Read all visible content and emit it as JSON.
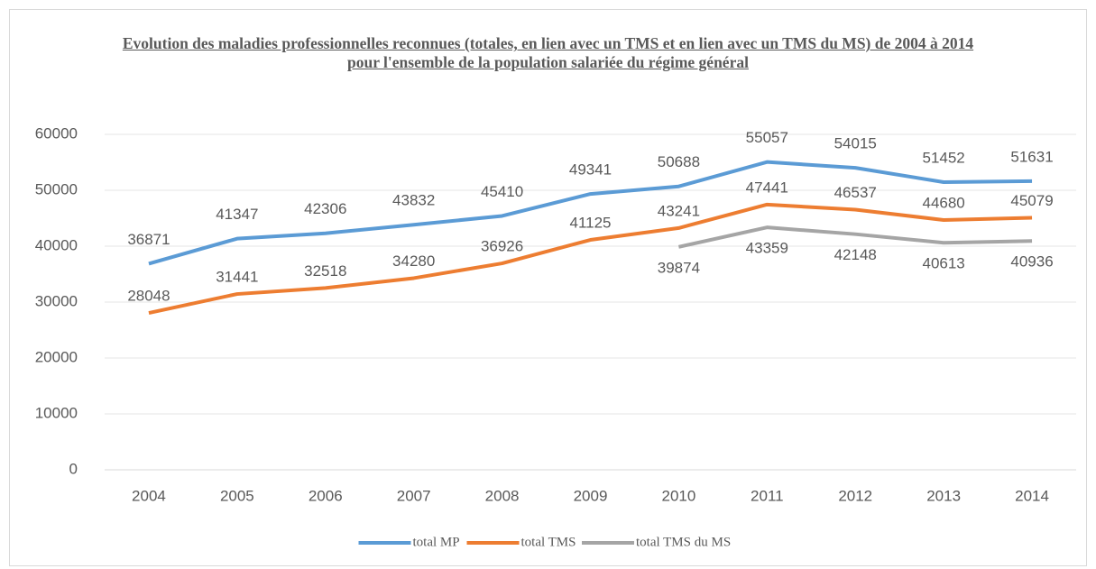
{
  "chart_data": {
    "type": "line",
    "title": "Evolution des maladies professionnelles reconnues (totales, en lien avec un TMS et en lien avec un TMS du MS) de 2004 à 2014 pour l'ensemble de la population salariée du régime général",
    "categories": [
      "2004",
      "2005",
      "2006",
      "2007",
      "2008",
      "2009",
      "2010",
      "2011",
      "2012",
      "2013",
      "2014"
    ],
    "series": [
      {
        "name": "total MP",
        "color": "#5b9bd5",
        "values": [
          36871,
          41347,
          42306,
          43832,
          45410,
          49341,
          50688,
          55057,
          54015,
          51452,
          51631
        ]
      },
      {
        "name": "total TMS",
        "color": "#ed7d31",
        "values": [
          28048,
          31441,
          32518,
          34280,
          36926,
          41125,
          43241,
          47441,
          46537,
          44680,
          45079
        ]
      },
      {
        "name": "total TMS du MS",
        "color": "#a5a5a5",
        "values": [
          null,
          null,
          null,
          null,
          null,
          null,
          39874,
          43359,
          42148,
          40613,
          40936
        ]
      }
    ],
    "ylim": [
      0,
      60000
    ],
    "yticks": [
      0,
      10000,
      20000,
      30000,
      40000,
      50000,
      60000
    ],
    "grid": true,
    "legend": "bottom"
  }
}
